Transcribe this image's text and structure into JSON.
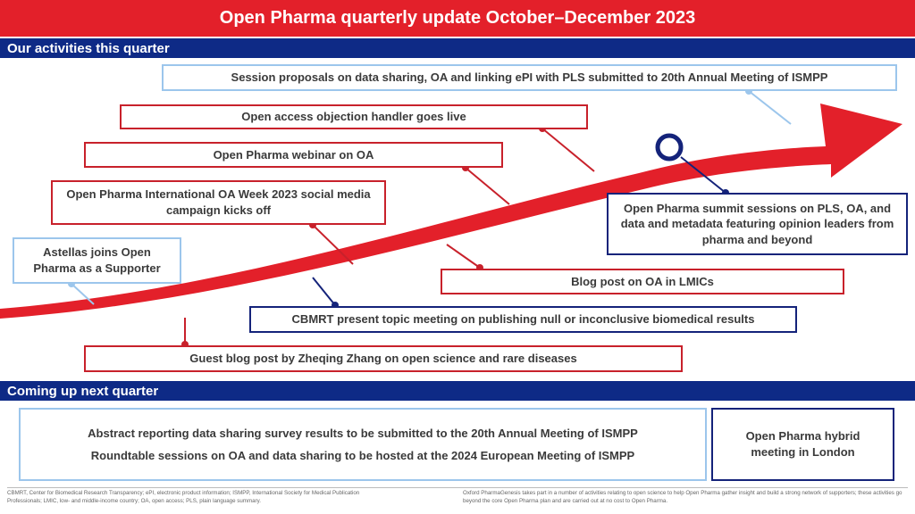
{
  "title": "Open Pharma quarterly update October–December 2023",
  "sections": {
    "activities": "Our activities this quarter",
    "next": "Coming up next quarter"
  },
  "activities": [
    "Session proposals on data sharing, OA and linking ePI with PLS submitted to 20th Annual Meeting of ISMPP",
    "Open access objection handler goes live",
    "Open Pharma webinar on OA",
    "Open Pharma International OA Week 2023 social media campaign kicks off",
    "Astellas joins Open Pharma as a Supporter",
    "Open Pharma summit sessions on PLS, OA, and data and metadata featuring opinion leaders from pharma and beyond",
    "Blog post on OA in LMICs",
    "CBMRT present topic meeting on publishing null or inconclusive biomedical results",
    "Guest blog post by Zheqing Zhang on open science and rare diseases"
  ],
  "next_quarter": {
    "items": [
      "Abstract reporting data sharing survey results to be submitted to the 20th Annual Meeting of ISMPP",
      "Roundtable sessions on OA and data sharing to be hosted at the 2024 European Meeting of ISMPP"
    ],
    "hybrid": "Open Pharma hybrid meeting in London"
  },
  "footnotes": {
    "left": "CBMRT, Center for Biomedical Research Transparency; ePI, electronic product information; ISMPP, International Society for Medical Publication Professionals; LMIC, low- and middle-income country; OA, open access; PLS, plain language summary.",
    "right": "Oxford PharmaGenesis takes part in a number of activities relating to open science to help Open Pharma gather insight and build a strong network of supporters; these activities go beyond the core Open Pharma plan and are carried out at no cost to Open Pharma."
  },
  "colors": {
    "red": "#e3202a",
    "navy": "#0e2a86",
    "light_blue": "#9cc6ec"
  }
}
